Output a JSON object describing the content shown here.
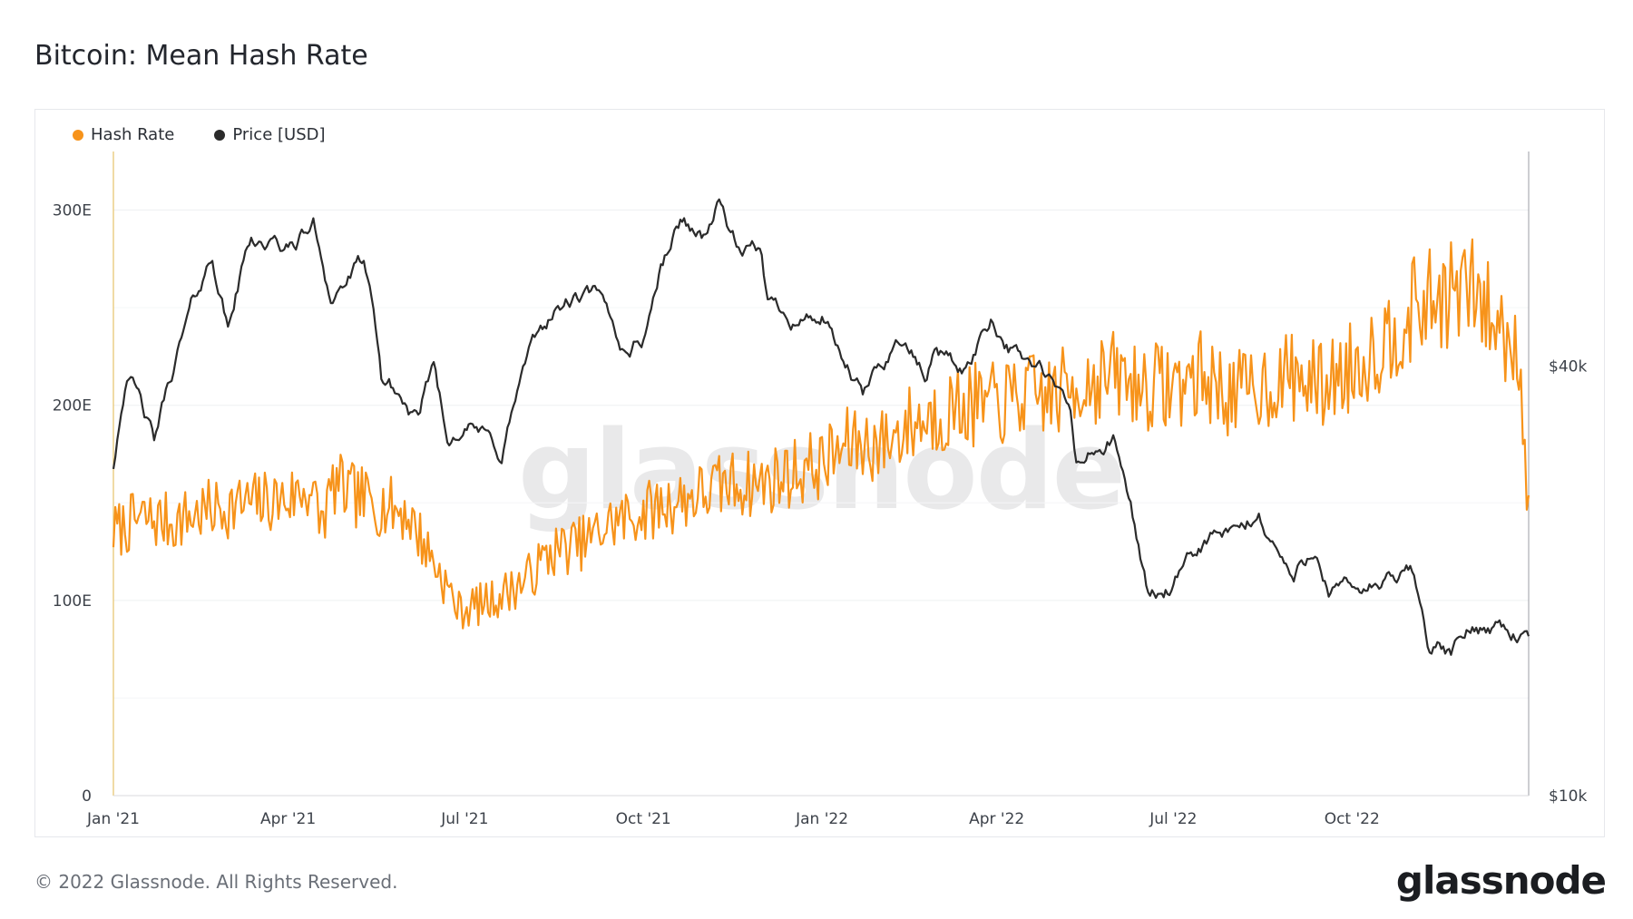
{
  "header": {
    "title": "Bitcoin: Mean Hash Rate"
  },
  "footer": {
    "copyright": "© 2022 Glassnode. All Rights Reserved.",
    "logo": "glassnode"
  },
  "watermark": "glassnode",
  "colors": {
    "hash_rate": "#f7931a",
    "price": "#2b2b2b",
    "grid": "#eef0f2",
    "axis": "#e7c36a"
  },
  "chart_data": {
    "type": "line",
    "title": "Bitcoin: Mean Hash Rate",
    "legend_position": "top-left",
    "grid": true,
    "x_axis": {
      "range": [
        "2021-01-01",
        "2022-12-31"
      ],
      "ticks": [
        "Jan '21",
        "Apr '21",
        "Jul '21",
        "Oct '21",
        "Jan '22",
        "Apr '22",
        "Jul '22",
        "Oct '22"
      ],
      "tick_dates": [
        "2021-01-01",
        "2021-04-01",
        "2021-07-01",
        "2021-10-01",
        "2022-01-01",
        "2022-04-01",
        "2022-07-01",
        "2022-10-01"
      ]
    },
    "y_left": {
      "range": [
        0,
        330
      ],
      "unit": "EH/s",
      "ticks": [
        "0",
        "100E",
        "200E",
        "300E"
      ],
      "tick_values": [
        0,
        100,
        200,
        300
      ]
    },
    "y_right": {
      "scale": "log",
      "range": [
        10000,
        80000
      ],
      "ticks": [
        "$10k",
        "$40k"
      ],
      "tick_values": [
        10000,
        40000
      ]
    },
    "series": [
      {
        "name": "Hash Rate",
        "axis": "left",
        "x": [
          "2021-01-01",
          "2021-01-15",
          "2021-02-01",
          "2021-02-15",
          "2021-03-01",
          "2021-03-15",
          "2021-04-01",
          "2021-04-12",
          "2021-04-18",
          "2021-04-25",
          "2021-05-01",
          "2021-05-15",
          "2021-06-01",
          "2021-06-15",
          "2021-06-28",
          "2021-07-15",
          "2021-08-01",
          "2021-08-15",
          "2021-09-01",
          "2021-09-15",
          "2021-10-01",
          "2021-10-15",
          "2021-11-01",
          "2021-11-15",
          "2021-12-01",
          "2021-12-15",
          "2022-01-01",
          "2022-01-15",
          "2022-02-01",
          "2022-02-15",
          "2022-03-01",
          "2022-03-15",
          "2022-04-01",
          "2022-04-15",
          "2022-05-01",
          "2022-05-15",
          "2022-06-01",
          "2022-06-15",
          "2022-07-01",
          "2022-07-15",
          "2022-08-01",
          "2022-08-15",
          "2022-09-01",
          "2022-09-15",
          "2022-10-01",
          "2022-10-15",
          "2022-11-01",
          "2022-11-15",
          "2022-12-01",
          "2022-12-15",
          "2022-12-26",
          "2022-12-31"
        ],
        "values": [
          135,
          142,
          140,
          145,
          148,
          150,
          152,
          158,
          140,
          160,
          155,
          150,
          145,
          120,
          95,
          100,
          110,
          125,
          130,
          140,
          145,
          150,
          155,
          160,
          160,
          165,
          170,
          180,
          180,
          190,
          195,
          200,
          200,
          205,
          205,
          212,
          215,
          210,
          210,
          215,
          205,
          210,
          215,
          210,
          220,
          230,
          248,
          255,
          260,
          240,
          230,
          145
        ]
      },
      {
        "name": "Price [USD]",
        "axis": "right",
        "x": [
          "2021-01-01",
          "2021-01-08",
          "2021-01-22",
          "2021-02-08",
          "2021-02-21",
          "2021-03-01",
          "2021-03-13",
          "2021-04-01",
          "2021-04-14",
          "2021-04-23",
          "2021-05-10",
          "2021-05-19",
          "2021-05-25",
          "2021-06-08",
          "2021-06-15",
          "2021-06-22",
          "2021-07-01",
          "2021-07-20",
          "2021-08-01",
          "2021-08-14",
          "2021-08-23",
          "2021-09-06",
          "2021-09-21",
          "2021-10-01",
          "2021-10-10",
          "2021-10-20",
          "2021-11-01",
          "2021-11-09",
          "2021-11-20",
          "2021-12-01",
          "2021-12-04",
          "2021-12-20",
          "2022-01-01",
          "2022-01-10",
          "2022-01-22",
          "2022-02-10",
          "2022-02-24",
          "2022-03-01",
          "2022-03-15",
          "2022-03-29",
          "2022-04-10",
          "2022-04-25",
          "2022-05-09",
          "2022-05-12",
          "2022-05-31",
          "2022-06-13",
          "2022-06-18",
          "2022-07-01",
          "2022-07-20",
          "2022-08-01",
          "2022-08-14",
          "2022-09-01",
          "2022-09-13",
          "2022-09-19",
          "2022-10-01",
          "2022-10-25",
          "2022-11-01",
          "2022-11-09",
          "2022-11-21",
          "2022-12-01",
          "2022-12-15",
          "2022-12-31"
        ],
        "values": [
          29000,
          40000,
          31000,
          46000,
          57000,
          45000,
          61000,
          58000,
          63000,
          50000,
          56000,
          38000,
          37000,
          33000,
          40000,
          31000,
          34000,
          30000,
          40000,
          47000,
          49000,
          50000,
          42000,
          44000,
          55000,
          64000,
          61000,
          68000,
          57000,
          57000,
          49000,
          47000,
          47000,
          41000,
          36000,
          44000,
          38000,
          43000,
          39000,
          47000,
          42000,
          39000,
          34000,
          29000,
          31500,
          22500,
          19000,
          19500,
          23000,
          23000,
          24500,
          20000,
          22500,
          19500,
          19300,
          20000,
          20500,
          16500,
          15800,
          17000,
          17500,
          16600
        ]
      }
    ]
  }
}
